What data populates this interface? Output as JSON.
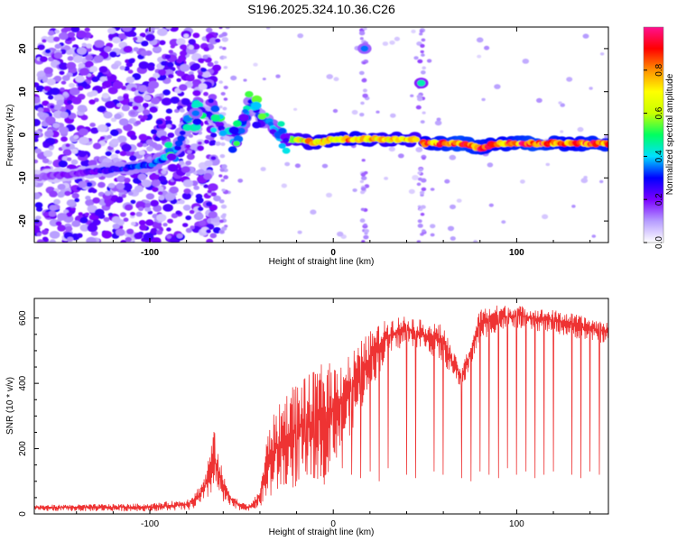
{
  "title": "S196.2025.324.10.36.C26",
  "chart_data": [
    {
      "type": "heatmap",
      "name": "spectrogram",
      "xlabel": "Height of straight line (km)",
      "ylabel": "Frequency (Hz)",
      "xlim": [
        -163,
        150
      ],
      "ylim": [
        -25,
        25
      ],
      "xticks": [
        -100,
        0,
        100
      ],
      "yticks": [
        -20,
        -10,
        0,
        10,
        20
      ],
      "colorbar": {
        "label": "Normalized spectral amplitude",
        "range": [
          0,
          1
        ],
        "ticks": [
          "0.0",
          "0.2",
          "0.4",
          "0.6",
          "0.8"
        ],
        "tick_values": [
          0,
          0.2,
          0.4,
          0.6,
          0.8
        ],
        "colors": [
          "#ffffff",
          "#b69cff",
          "#7a00ff",
          "#0000ff",
          "#00e0ff",
          "#00ff60",
          "#c8ff00",
          "#ffff00",
          "#ff9000",
          "#ff0000",
          "#ff1090"
        ]
      },
      "ridge": {
        "x": [
          -163,
          -140,
          -120,
          -100,
          -90,
          -85,
          -80,
          -75,
          -70,
          -65,
          -60,
          -55,
          -50,
          -45,
          -40,
          -35,
          -30,
          -25,
          -20,
          -10,
          0,
          10,
          20,
          30,
          40,
          45,
          50,
          60,
          70,
          80,
          90,
          100,
          110,
          120,
          130,
          140,
          150
        ],
        "freq": [
          -10,
          -9,
          -8,
          -7,
          -5,
          -3,
          3,
          5,
          5,
          4,
          1,
          0,
          1,
          8,
          4,
          3,
          0,
          -1,
          -1,
          -2,
          -1,
          -1,
          -1,
          -1,
          -1,
          -1,
          -2,
          -2,
          -2,
          -3,
          -2,
          -2,
          -2,
          -2,
          -2,
          -2,
          -2
        ],
        "amplitude": [
          0.15,
          0.2,
          0.3,
          0.35,
          0.4,
          0.35,
          0.3,
          0.3,
          0.25,
          0.3,
          0.25,
          0.2,
          0.4,
          0.35,
          0.3,
          0.35,
          0.5,
          0.6,
          0.7,
          0.8,
          0.8,
          0.85,
          0.8,
          0.75,
          0.8,
          0.7,
          0.85,
          0.9,
          0.95,
          0.9,
          0.85,
          0.9,
          0.95,
          0.9,
          0.85,
          0.9,
          0.9
        ]
      },
      "features": [
        {
          "x": 17,
          "freq": 20,
          "amplitude": 0.35,
          "label": "tone-20Hz"
        },
        {
          "x": 48,
          "freq": 12,
          "amplitude": 0.45,
          "label": "tone-12Hz"
        },
        {
          "x": -75,
          "freq": 5,
          "amplitude": 0.35,
          "label": "blob"
        }
      ]
    },
    {
      "type": "line",
      "name": "snr",
      "xlabel": "Height of straight line (km)",
      "ylabel": "SNR (10 * v/v)",
      "xlim": [
        -163,
        150
      ],
      "ylim": [
        0,
        660
      ],
      "xticks": [
        -100,
        0,
        100
      ],
      "yticks": [
        0,
        200,
        400,
        600
      ],
      "color": "#ee3333",
      "envelope": {
        "x": [
          -163,
          -130,
          -100,
          -80,
          -75,
          -70,
          -65,
          -60,
          -55,
          -50,
          -45,
          -40,
          -35,
          -30,
          -25,
          -20,
          -15,
          -10,
          -5,
          0,
          10,
          20,
          30,
          40,
          50,
          60,
          65,
          70,
          75,
          80,
          90,
          100,
          110,
          120,
          130,
          140,
          150
        ],
        "high": [
          28,
          30,
          32,
          45,
          70,
          120,
          260,
          120,
          60,
          35,
          30,
          80,
          280,
          330,
          380,
          410,
          420,
          440,
          470,
          460,
          500,
          560,
          600,
          610,
          590,
          580,
          500,
          450,
          530,
          630,
          640,
          640,
          630,
          625,
          615,
          600,
          590
        ],
        "low": [
          8,
          8,
          8,
          10,
          15,
          30,
          70,
          30,
          15,
          10,
          10,
          20,
          40,
          60,
          70,
          80,
          90,
          100,
          110,
          150,
          250,
          380,
          480,
          520,
          500,
          460,
          420,
          380,
          450,
          530,
          560,
          570,
          560,
          555,
          540,
          530,
          520
        ]
      },
      "dropouts_x": [
        -25,
        -20,
        -15,
        -10,
        -5,
        5,
        10,
        15,
        20,
        25,
        30,
        40,
        45,
        55,
        60,
        70,
        75,
        80,
        85,
        90,
        95,
        100,
        105,
        110,
        115,
        120,
        130,
        135,
        140,
        145
      ],
      "dropout_levels": [
        120,
        100,
        130,
        110,
        90,
        140,
        120,
        110,
        130,
        100,
        140,
        120,
        110,
        130,
        120,
        110,
        100,
        130,
        120,
        110,
        140,
        120,
        130,
        110,
        120,
        130,
        120,
        110,
        130,
        120
      ]
    }
  ]
}
